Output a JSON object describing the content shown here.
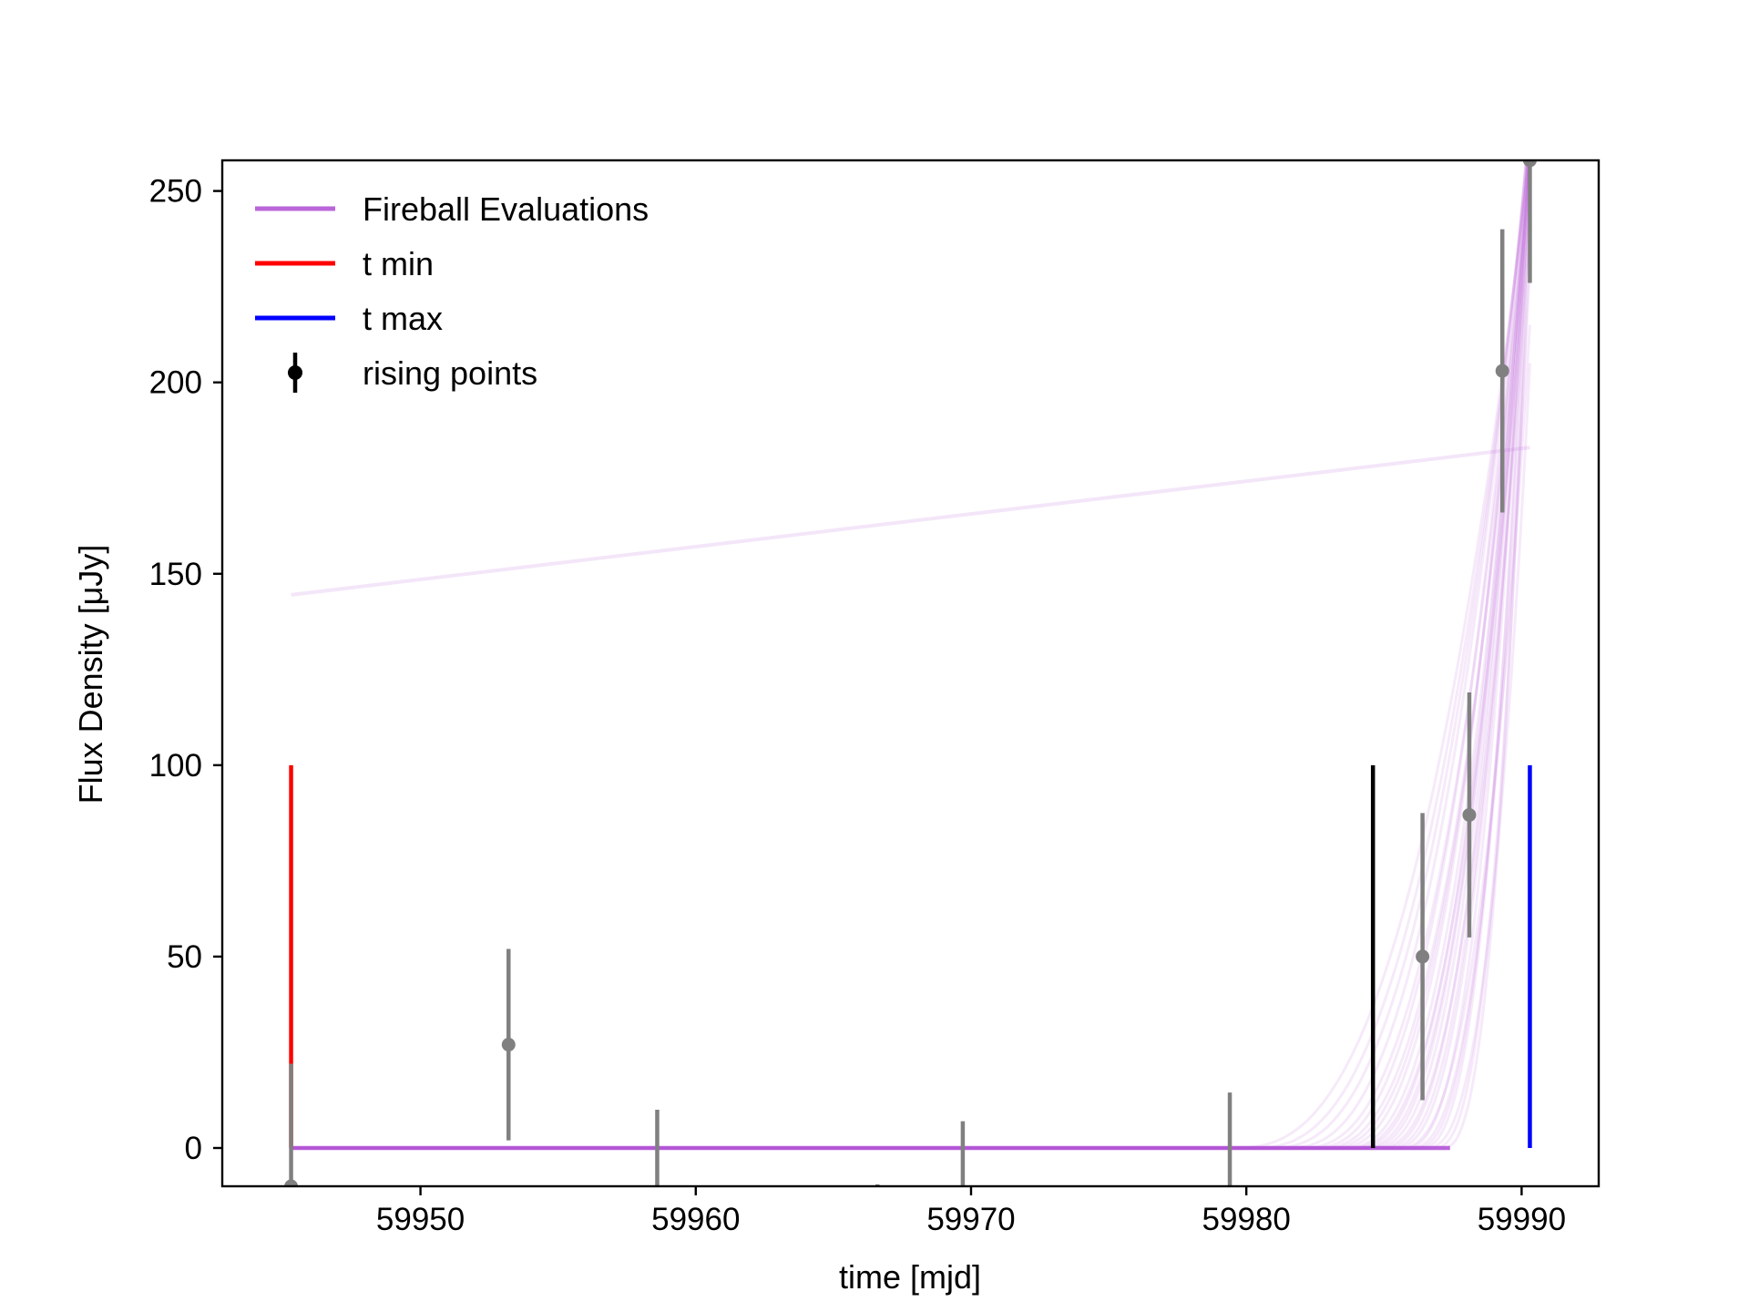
{
  "chart_data": {
    "type": "line",
    "xlabel": "time [mjd]",
    "ylabel": "Flux Density [μJy]",
    "xlim": [
      59942.8,
      59992.8
    ],
    "ylim": [
      -10,
      258
    ],
    "x_ticks": [
      59950,
      59960,
      59970,
      59980,
      59990
    ],
    "y_ticks": [
      0,
      50,
      100,
      150,
      200,
      250
    ],
    "grid": false,
    "legend_position": "top-left",
    "colors": {
      "fireball": "#b355d6",
      "t_min": "#ff0000",
      "t_max": "#0000ff",
      "rising_marker": "#000000",
      "data_points": "#808080",
      "marker_line": "#000000"
    },
    "legend": [
      {
        "label": "Fireball Evaluations",
        "kind": "line",
        "color": "#b355d6"
      },
      {
        "label": "t min",
        "kind": "line",
        "color": "#ff0000"
      },
      {
        "label": "t max",
        "kind": "line",
        "color": "#0000ff"
      },
      {
        "label": "rising points",
        "kind": "errorbar",
        "color": "#000000"
      }
    ],
    "vertical_lines": [
      {
        "name": "t min",
        "x": 59945.3,
        "y_from": 0,
        "y_to": 100,
        "color": "#ff0000"
      },
      {
        "name": "t max",
        "x": 59990.3,
        "y_from": 0,
        "y_to": 100,
        "color": "#0000ff"
      },
      {
        "name": "rising start",
        "x": 59984.6,
        "y_from": 0,
        "y_to": 100,
        "color": "#000000"
      }
    ],
    "fireball_model": {
      "x_start": 59945.3,
      "x_end": 59990.3,
      "baseline": 0,
      "onsets": [
        59979.5,
        59980.2,
        59980.8,
        59981.4,
        59981.9,
        59982.3,
        59982.6,
        59982.9,
        59983.2,
        59983.5,
        59983.7,
        59983.9,
        59984.1,
        59984.3,
        59984.5,
        59984.7,
        59984.9,
        59985.1,
        59985.3,
        59985.5,
        59985.7,
        59985.9,
        59986.1,
        59986.3,
        59986.5,
        59986.8,
        59987.1
      ],
      "end_values": [
        260,
        262,
        265,
        268,
        258,
        270,
        255,
        264,
        272,
        260,
        250,
        266,
        259,
        270,
        262,
        245,
        268,
        257,
        260,
        215,
        266,
        230,
        250,
        262,
        205,
        240,
        255
      ],
      "outlier_line": {
        "x": [
          59945.3,
          59990.3
        ],
        "y": [
          144.5,
          183
        ]
      }
    },
    "series": [
      {
        "name": "data",
        "x": [
          59945.3,
          59953.2,
          59958.6,
          59966.6,
          59969.7,
          59979.4,
          59986.4,
          59988.1,
          59989.3,
          59990.3
        ],
        "y": [
          -10,
          27,
          -17,
          -10,
          -17,
          -10,
          50,
          87,
          203,
          258
        ],
        "yerr": [
          32,
          25,
          27,
          0.5,
          24,
          24.5,
          37.5,
          32,
          37,
          32
        ],
        "show_marker": [
          true,
          true,
          false,
          false,
          false,
          false,
          true,
          true,
          true,
          true
        ]
      }
    ]
  }
}
